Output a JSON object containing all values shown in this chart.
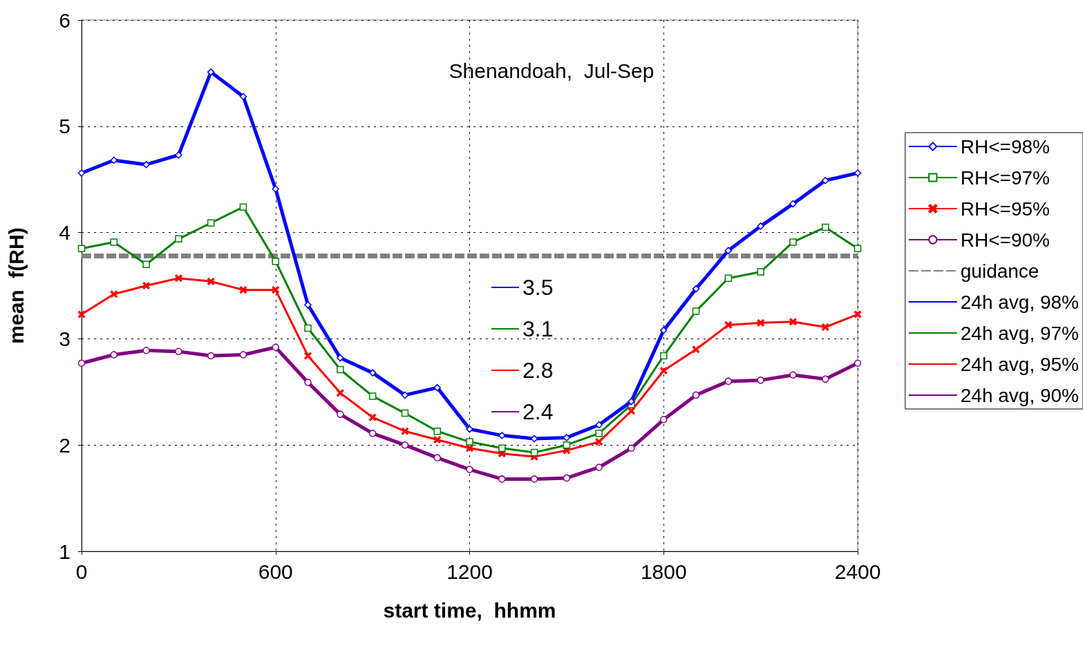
{
  "chart_data": {
    "type": "line",
    "title": "Shenandoah,  Jul-Sep",
    "xlabel": "start time,  hhmm",
    "ylabel": "mean  f(RH)",
    "x": [
      0,
      100,
      200,
      300,
      400,
      500,
      600,
      700,
      800,
      900,
      1000,
      1100,
      1200,
      1300,
      1400,
      1500,
      1600,
      1700,
      1800,
      1900,
      2000,
      2100,
      2200,
      2300,
      2400
    ],
    "xlim": [
      0,
      2400
    ],
    "xticks": [
      0,
      600,
      1200,
      1800,
      2400
    ],
    "ylim": [
      1,
      6
    ],
    "yticks": [
      1,
      2,
      3,
      4,
      5,
      6
    ],
    "grid": true,
    "legend": "right",
    "series": [
      {
        "name": "RH<=98%",
        "color": "#0000ff",
        "marker": "diamond",
        "values": [
          4.56,
          4.68,
          4.64,
          4.73,
          5.51,
          5.28,
          4.41,
          3.32,
          2.82,
          2.68,
          2.47,
          2.54,
          2.15,
          2.09,
          2.06,
          2.07,
          2.19,
          2.41,
          3.08,
          3.47,
          3.83,
          4.06,
          4.27,
          4.49,
          4.56
        ]
      },
      {
        "name": "RH<=97%",
        "color": "#008000",
        "marker": "square",
        "values": [
          3.85,
          3.91,
          3.7,
          3.94,
          4.09,
          4.24,
          3.73,
          3.1,
          2.71,
          2.46,
          2.3,
          2.13,
          2.03,
          1.97,
          1.93,
          2.0,
          2.11,
          2.38,
          2.84,
          3.26,
          3.57,
          3.63,
          3.91,
          4.05,
          3.85
        ]
      },
      {
        "name": "RH<=95%",
        "color": "#ff0000",
        "marker": "cross",
        "values": [
          3.23,
          3.42,
          3.5,
          3.57,
          3.54,
          3.46,
          3.46,
          2.84,
          2.49,
          2.26,
          2.13,
          2.05,
          1.97,
          1.92,
          1.89,
          1.95,
          2.03,
          2.32,
          2.7,
          2.9,
          3.13,
          3.15,
          3.16,
          3.11,
          3.23
        ]
      },
      {
        "name": "RH<=90%",
        "color": "#800080",
        "marker": "circle",
        "values": [
          2.77,
          2.85,
          2.89,
          2.88,
          2.84,
          2.85,
          2.92,
          2.59,
          2.29,
          2.11,
          2.0,
          1.88,
          1.77,
          1.68,
          1.68,
          1.69,
          1.79,
          1.97,
          2.24,
          2.47,
          2.6,
          2.61,
          2.66,
          2.62,
          2.77
        ]
      },
      {
        "name": "guidance",
        "color": "#808080",
        "marker": "none",
        "line_style": "dashed",
        "x": [
          0,
          2400
        ],
        "values": [
          3.78,
          3.78
        ]
      },
      {
        "name": "24h avg, 98%",
        "color": "#0000ff",
        "marker": "none",
        "values": [
          null,
          null,
          null,
          null,
          null,
          null,
          null,
          null,
          null,
          null,
          null,
          null,
          null,
          null,
          null,
          null,
          null,
          null,
          null,
          null,
          null,
          null,
          null,
          null,
          null
        ]
      },
      {
        "name": "24h avg, 97%",
        "color": "#008000",
        "marker": "none",
        "values": [
          null,
          null,
          null,
          null,
          null,
          null,
          null,
          null,
          null,
          null,
          null,
          null,
          null,
          null,
          null,
          null,
          null,
          null,
          null,
          null,
          null,
          null,
          null,
          null,
          null
        ]
      },
      {
        "name": "24h avg, 95%",
        "color": "#ff0000",
        "marker": "none",
        "values": [
          null,
          null,
          null,
          null,
          null,
          null,
          null,
          null,
          null,
          null,
          null,
          null,
          null,
          null,
          null,
          null,
          null,
          null,
          null,
          null,
          null,
          null,
          null,
          null,
          null
        ]
      },
      {
        "name": "24h avg, 90%",
        "color": "#800080",
        "marker": "none",
        "values": [
          null,
          null,
          null,
          null,
          null,
          null,
          null,
          null,
          null,
          null,
          null,
          null,
          null,
          null,
          null,
          null,
          null,
          null,
          null,
          null,
          null,
          null,
          null,
          null,
          null
        ]
      }
    ],
    "annotations": [
      "3.5",
      "3.1",
      "2.8",
      "2.4"
    ]
  }
}
